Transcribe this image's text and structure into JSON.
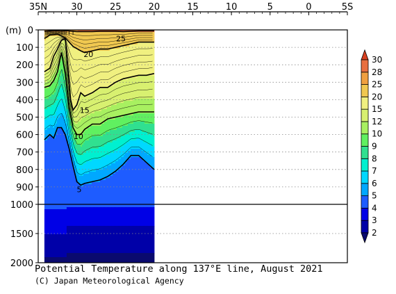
{
  "chart_data": {
    "type": "heatmap",
    "title": "Potential Temperature along 137°E line, August 2021",
    "credit": "(C) Japan Meteorological Agency",
    "x_axis": {
      "ticks": [
        {
          "value": 35,
          "label": "35N"
        },
        {
          "value": 30,
          "label": "30"
        },
        {
          "value": 25,
          "label": "25"
        },
        {
          "value": 20,
          "label": "20"
        },
        {
          "value": 15,
          "label": "15"
        },
        {
          "value": 10,
          "label": "10"
        },
        {
          "value": 5,
          "label": "5"
        },
        {
          "value": 0,
          "label": "0"
        },
        {
          "value": -5,
          "label": "5S"
        }
      ],
      "range": [
        35,
        -5
      ],
      "position": "top"
    },
    "y_axis": {
      "unit_label": "(m)",
      "upper_ticks": [
        0,
        100,
        200,
        300,
        400,
        500,
        600,
        700,
        800,
        900,
        1000
      ],
      "lower_ticks": [
        1500,
        2000
      ],
      "upper_range": [
        0,
        1000
      ],
      "lower_range": [
        1000,
        2000
      ],
      "gridlines": "dotted"
    },
    "station_latitudes": [
      34.0,
      33.8,
      33.6,
      33.4,
      33.2,
      33.0,
      32.8,
      32.6,
      32.4,
      32.2,
      32.0,
      31.8,
      31.6,
      31.4,
      31.0,
      30.5
    ],
    "data_extent_lat": [
      34.2,
      20.0
    ],
    "isotherms": [
      {
        "value": 25,
        "depths": [
          [
            34.2,
            8
          ],
          [
            33,
            3
          ],
          [
            32,
            3
          ],
          [
            31,
            6
          ],
          [
            30,
            10
          ],
          [
            29,
            10
          ],
          [
            28,
            10
          ],
          [
            27,
            8
          ],
          [
            26,
            8
          ],
          [
            25,
            8
          ],
          [
            24,
            10
          ],
          [
            23,
            8
          ],
          [
            22,
            6
          ],
          [
            21,
            6
          ],
          [
            20,
            6
          ]
        ]
      },
      {
        "value": 20,
        "depths": [
          [
            34.2,
            50
          ],
          [
            33.5,
            30
          ],
          [
            32.5,
            25
          ],
          [
            31.5,
            45
          ],
          [
            30.5,
            95
          ],
          [
            29.5,
            120
          ],
          [
            29,
            130
          ],
          [
            28,
            120
          ],
          [
            27,
            110
          ],
          [
            26,
            110
          ],
          [
            25,
            100
          ],
          [
            24,
            90
          ],
          [
            23,
            80
          ],
          [
            22,
            70
          ],
          [
            21,
            70
          ],
          [
            20,
            70
          ]
        ]
      },
      {
        "value": 15,
        "depths": [
          [
            34.2,
            240
          ],
          [
            33.5,
            220
          ],
          [
            33,
            150
          ],
          [
            32.5,
            110
          ],
          [
            32,
            60
          ],
          [
            31.5,
            50
          ],
          [
            31,
            300
          ],
          [
            30.8,
            400
          ],
          [
            30.5,
            460
          ],
          [
            30,
            430
          ],
          [
            29.5,
            360
          ],
          [
            29,
            380
          ],
          [
            28,
            360
          ],
          [
            27,
            330
          ],
          [
            26,
            330
          ],
          [
            25,
            300
          ],
          [
            24,
            280
          ],
          [
            23,
            270
          ],
          [
            22,
            260
          ],
          [
            21,
            260
          ],
          [
            20,
            250
          ]
        ]
      },
      {
        "value": 10,
        "depths": [
          [
            34.2,
            330
          ],
          [
            33.5,
            320
          ],
          [
            33,
            290
          ],
          [
            32.5,
            240
          ],
          [
            32,
            130
          ],
          [
            31.5,
            250
          ],
          [
            31,
            450
          ],
          [
            30.5,
            560
          ],
          [
            30,
            600
          ],
          [
            29.5,
            600
          ],
          [
            29,
            570
          ],
          [
            28,
            540
          ],
          [
            27,
            540
          ],
          [
            26,
            510
          ],
          [
            25,
            500
          ],
          [
            24,
            490
          ],
          [
            23,
            480
          ],
          [
            22,
            470
          ],
          [
            21,
            470
          ],
          [
            20,
            470
          ]
        ]
      },
      {
        "value": 5,
        "depths": [
          [
            34.2,
            630
          ],
          [
            33.5,
            600
          ],
          [
            33,
            620
          ],
          [
            32.5,
            560
          ],
          [
            32,
            560
          ],
          [
            31.5,
            600
          ],
          [
            31,
            680
          ],
          [
            30.5,
            780
          ],
          [
            30,
            870
          ],
          [
            29.5,
            890
          ],
          [
            29,
            880
          ],
          [
            28,
            870
          ],
          [
            27,
            860
          ],
          [
            26,
            840
          ],
          [
            25,
            810
          ],
          [
            24,
            770
          ],
          [
            23,
            720
          ],
          [
            22,
            720
          ],
          [
            21,
            760
          ],
          [
            20,
            800
          ]
        ]
      }
    ],
    "contour_labels": [
      {
        "text": "25",
        "lat": 24.3,
        "depth": 50
      },
      {
        "text": "20",
        "lat": 28.5,
        "depth": 140
      },
      {
        "text": "15",
        "lat": 29.0,
        "depth": 460
      },
      {
        "text": "10",
        "lat": 29.8,
        "depth": 610
      },
      {
        "text": "5",
        "lat": 29.7,
        "depth": 915
      }
    ],
    "colorbar": {
      "levels": [
        "2",
        "3",
        "4",
        "5",
        "6",
        "7",
        "8",
        "9",
        "10",
        "12",
        "15",
        "20",
        "25",
        "28",
        "30"
      ],
      "colors": [
        "#0a0a6e",
        "#0000a8",
        "#0000e6",
        "#1e5cff",
        "#00a8ff",
        "#00d8ff",
        "#00f0d0",
        "#30e090",
        "#60f060",
        "#a8f060",
        "#d8f070",
        "#f0f080",
        "#f0c850",
        "#f0a040",
        "#e87040",
        "#d84020"
      ]
    }
  }
}
